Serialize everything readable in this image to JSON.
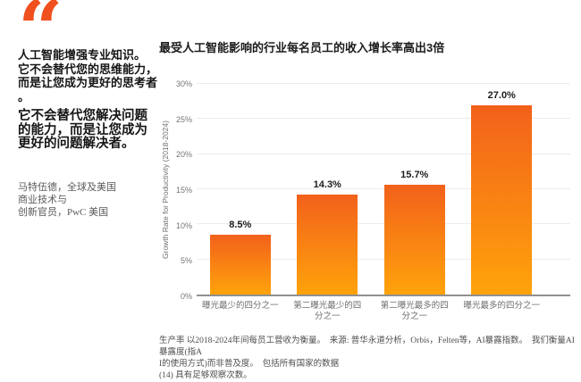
{
  "quote": {
    "mark_glyph": "“",
    "para1": "人工智能增强专业知识。\n它不会替代您的思维能力，\n而是让您成为更好的思考者\n。",
    "para2": "它不会替代您解决问题\n的能力，而是让您成为\n更好的问题解决者。",
    "attribution": "马特伍德，全球及美国\n商业技术与\n创新官员，PwC 美国"
  },
  "chart_data": {
    "type": "bar",
    "title": "最受人工智能影响的行业每名员工的收入增长率高出3倍",
    "ylabel": "Growth Rate for Productivity (2018-2024)",
    "xlabel": "",
    "categories": [
      "曝光最少的四分之一",
      "第二曝光最少的四分之一",
      "第二曝光最多的四分之一",
      "曝光最多的四分之一"
    ],
    "categories_display": [
      "曝光最少的四分之一",
      "第二曝光最少的四\n分之一",
      "第二曝光最多的四\n分之一",
      "曝光最多的四分之一"
    ],
    "values": [
      8.5,
      14.3,
      15.7,
      27.0
    ],
    "value_labels": [
      "8.5%",
      "14.3%",
      "15.7%",
      "27.0%"
    ],
    "ylim": [
      0,
      30
    ],
    "yticks": [
      0,
      5,
      10,
      15,
      20,
      25,
      30
    ],
    "ytick_labels": [
      "0%",
      "5%",
      "10%",
      "15%",
      "20%",
      "25%",
      "30%"
    ],
    "grid": "horizontal",
    "legend": "none",
    "bar_color_top": "#F2611B",
    "bar_color_bottom": "#FFA30B"
  },
  "footnote": {
    "text": "生产率 以2018-2024年间每员工营收为衡量。  来源: 普华永道分析，Orbis，Felten等，AI暴露指数。  我们衡量AI暴露度(指A\nI的使用方式)而非普及度。  包括所有国家的数据\n(14) 具有足够观察次数。"
  },
  "colors": {
    "accent_orange": "#F0501E",
    "bar_gradient_top": "#F2611B",
    "bar_gradient_bottom": "#FFA30B"
  }
}
